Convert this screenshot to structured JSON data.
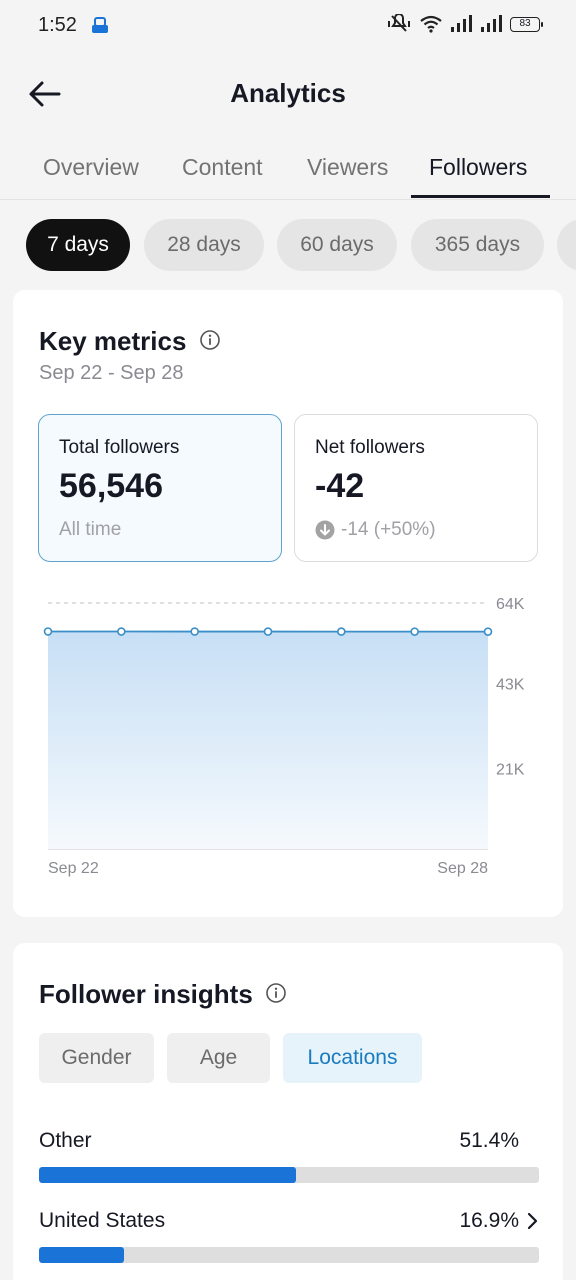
{
  "status": {
    "time": "1:52",
    "battery": "83"
  },
  "header": {
    "title": "Analytics"
  },
  "tabs": [
    {
      "label": "Overview"
    },
    {
      "label": "Content"
    },
    {
      "label": "Viewers"
    },
    {
      "label": "Followers"
    }
  ],
  "active_tab": "Followers",
  "ranges": [
    {
      "label": "7 days"
    },
    {
      "label": "28 days"
    },
    {
      "label": "60 days"
    },
    {
      "label": "365 days"
    }
  ],
  "active_range": "7 days",
  "key_metrics": {
    "title": "Key metrics",
    "date_range": "Sep 22 - Sep 28",
    "total": {
      "label": "Total followers",
      "value": "56,546",
      "sub": "All time"
    },
    "net": {
      "label": "Net followers",
      "value": "-42",
      "change": "-14 (+50%)"
    }
  },
  "chart_data": {
    "type": "area",
    "x": [
      "Sep 22",
      "Sep 23",
      "Sep 24",
      "Sep 25",
      "Sep 26",
      "Sep 27",
      "Sep 28"
    ],
    "series": [
      {
        "values": [
          56588,
          56581,
          56574,
          56567,
          56560,
          56553,
          56546
        ]
      }
    ],
    "ylim": [
      0,
      64000
    ],
    "yticks": [
      "64K",
      "43K",
      "21K"
    ],
    "ytick_values": [
      64000,
      43000,
      21000
    ],
    "xtick_labels": [
      "Sep 22",
      "Sep 28"
    ],
    "grid": true,
    "color": "#3a8fc8"
  },
  "insights": {
    "title": "Follower insights",
    "tabs": [
      {
        "label": "Gender"
      },
      {
        "label": "Age"
      },
      {
        "label": "Locations"
      }
    ],
    "active_tab": "Locations",
    "locations": [
      {
        "name": "Other",
        "percent": "51.4%",
        "value": 51.4
      },
      {
        "name": "United States",
        "percent": "16.9%",
        "value": 16.9
      }
    ]
  },
  "colors": {
    "accent": "#1a73d6",
    "active_tab_text": "#1a7bbf"
  }
}
